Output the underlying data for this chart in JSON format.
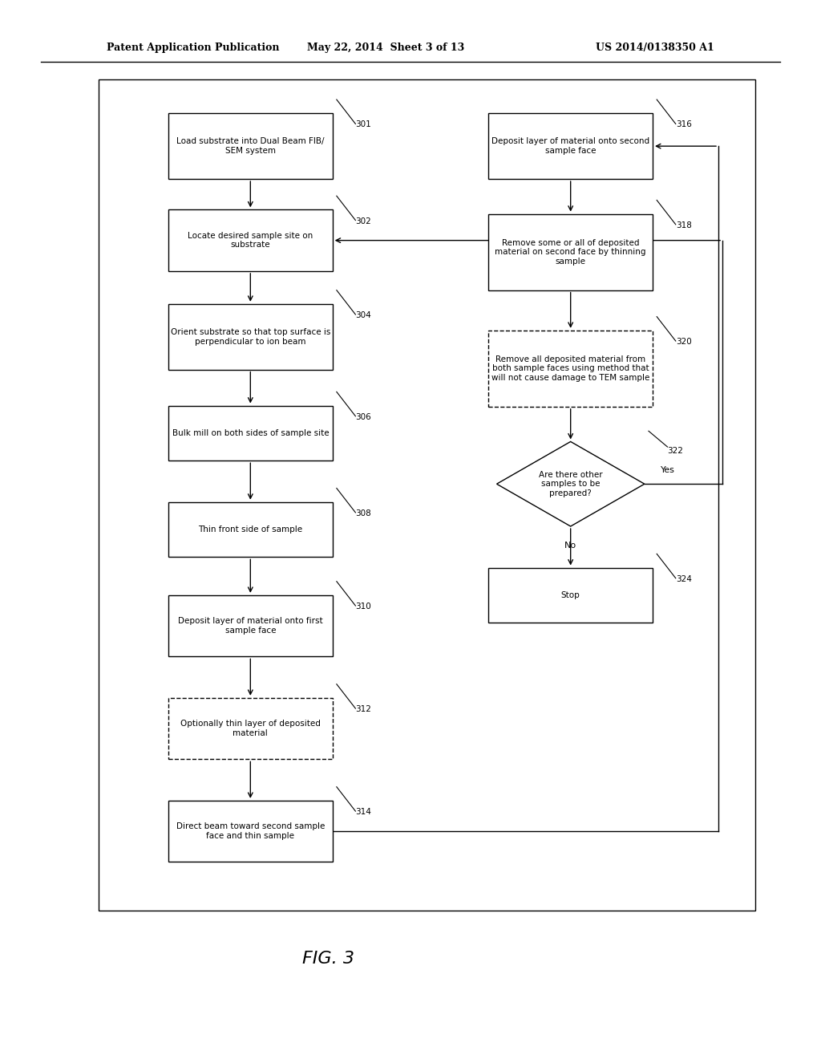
{
  "header_left": "Patent Application Publication",
  "header_mid": "May 22, 2014  Sheet 3 of 13",
  "header_right": "US 2014/0138350 A1",
  "fig_label": "FIG. 3",
  "bg_color": "#ffffff",
  "box_color": "#000000",
  "text_color": "#000000",
  "font_size": 7.5,
  "header_font_size": 9
}
